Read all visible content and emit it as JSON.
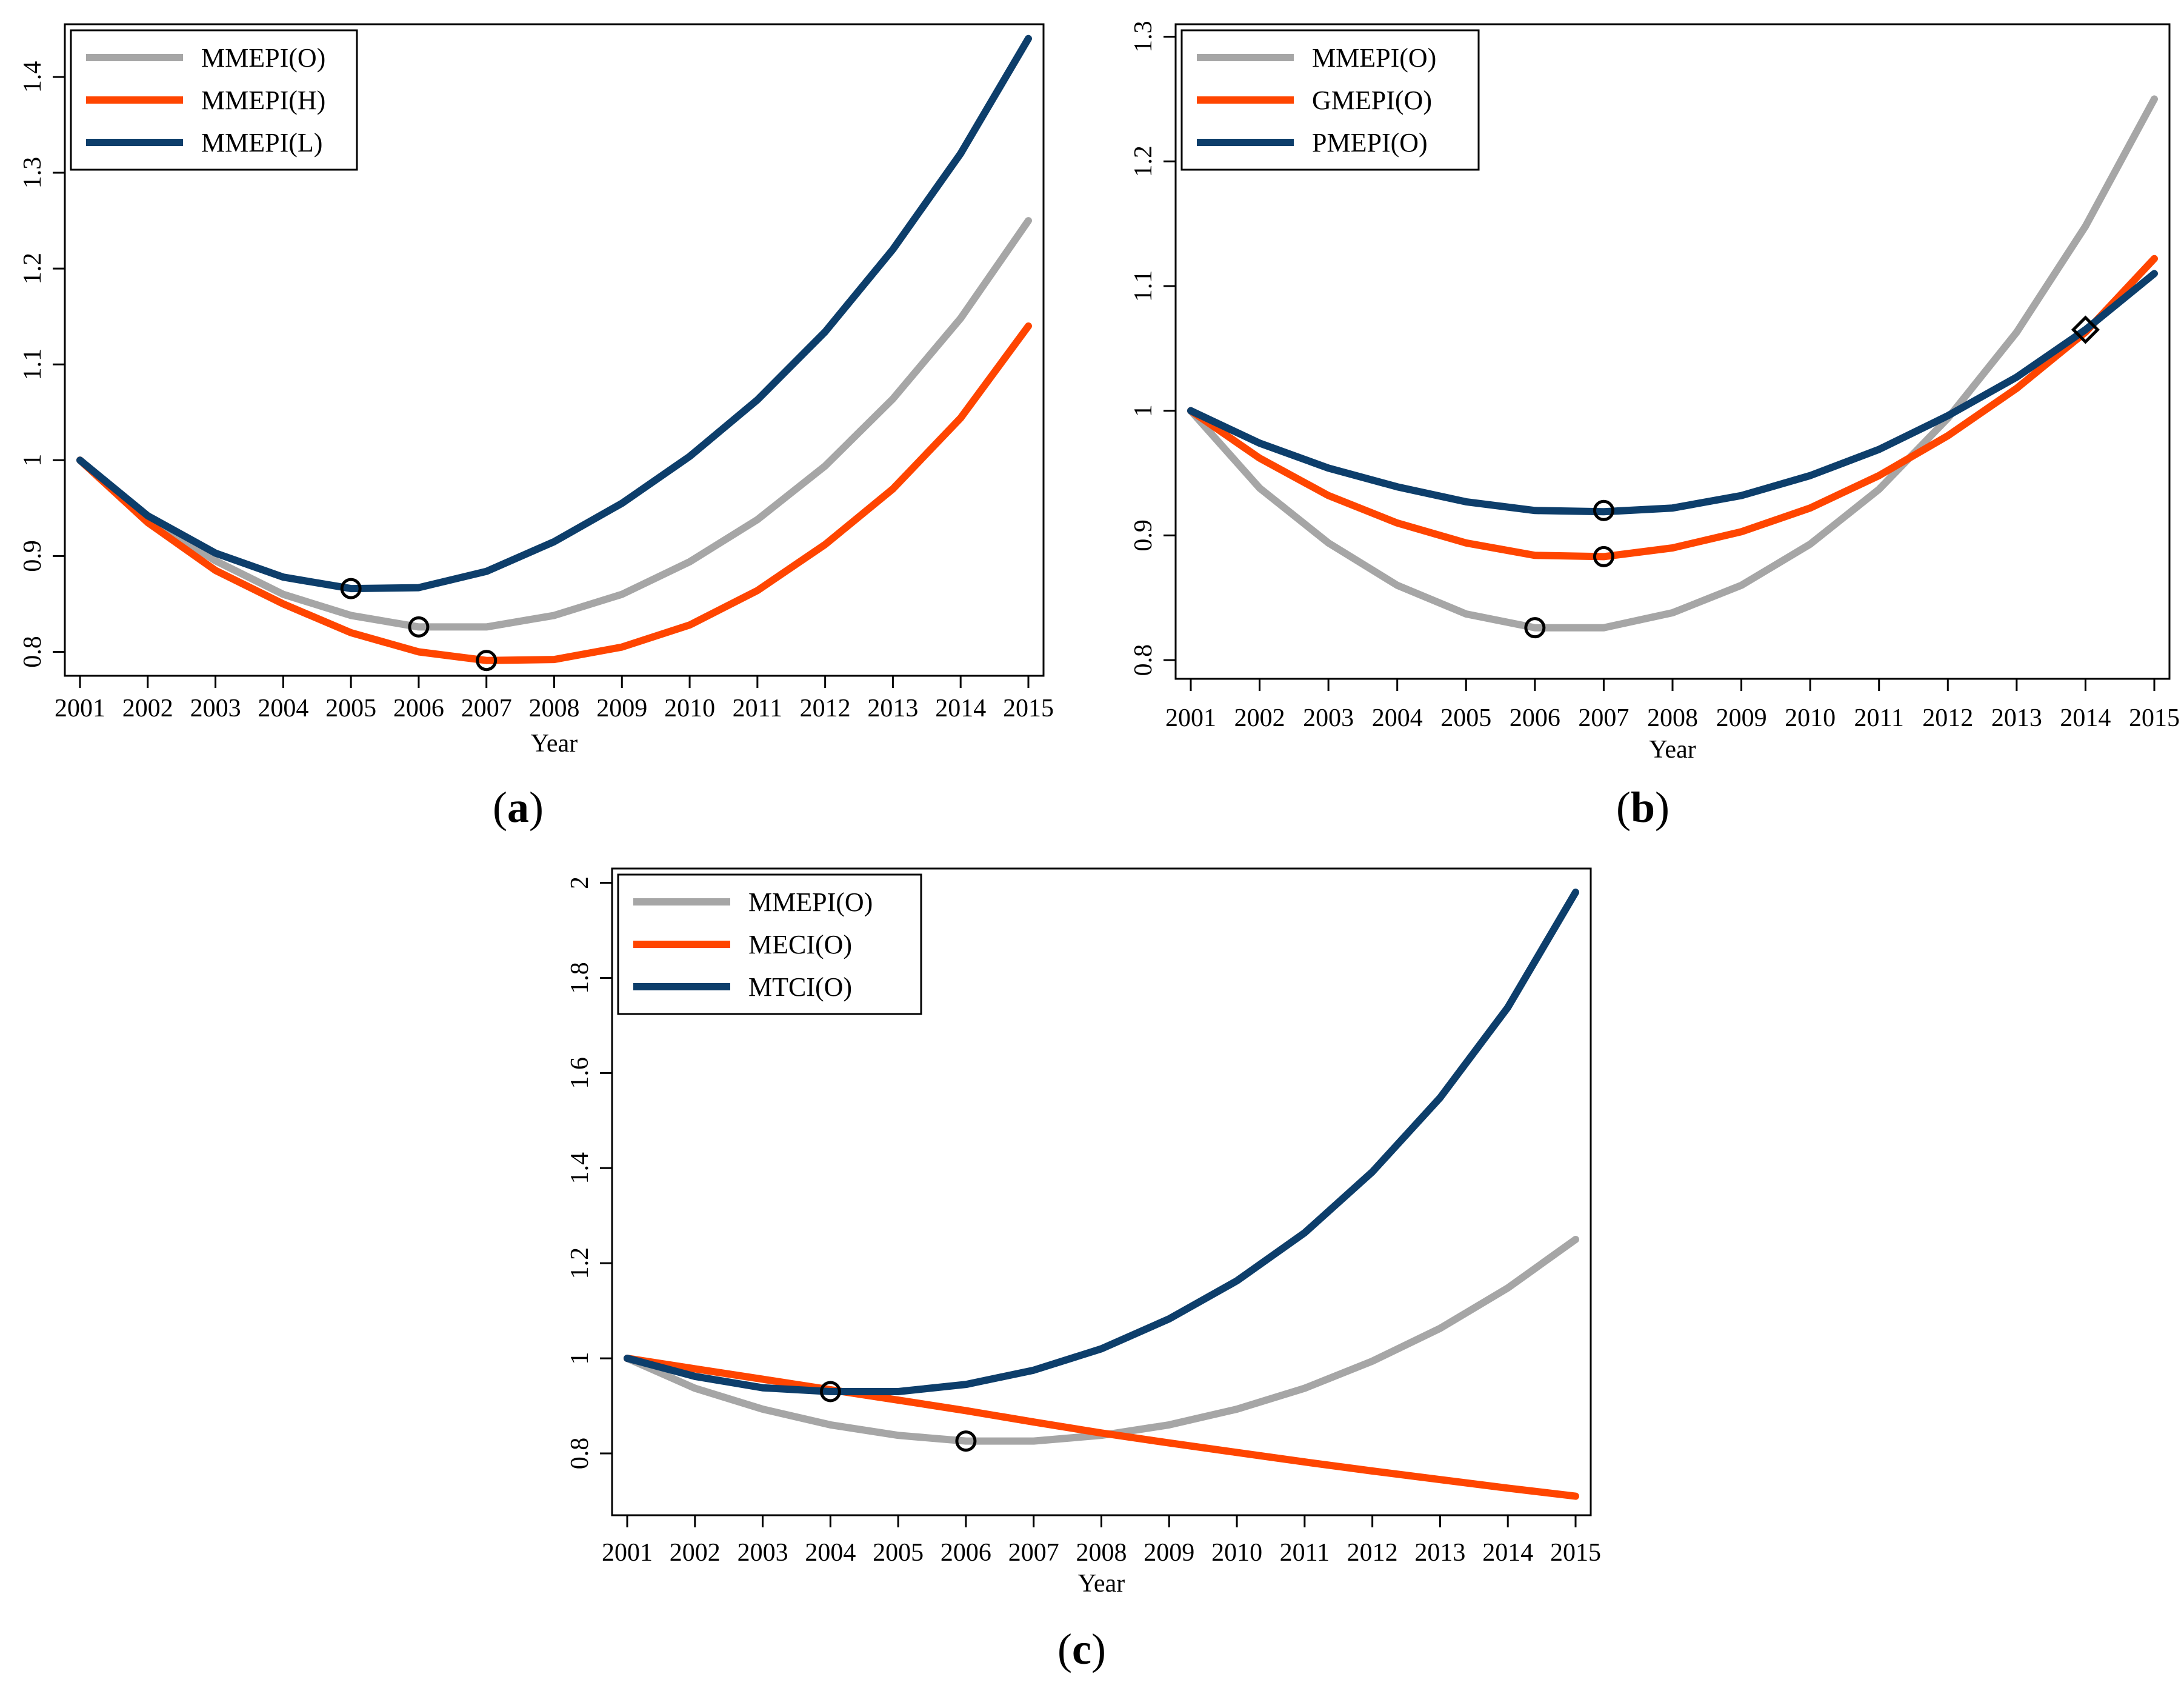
{
  "panels": [
    {
      "id": "a",
      "label_open": "(",
      "label_letter": "a",
      "label_close": ")"
    },
    {
      "id": "b",
      "label_open": "(",
      "label_letter": "b",
      "label_close": ")"
    },
    {
      "id": "c",
      "label_open": "(",
      "label_letter": "c",
      "label_close": ")"
    }
  ],
  "colors": {
    "gray": "#a6a6a6",
    "orange": "#ff4500",
    "navy": "#0d3e6b"
  },
  "chart_data": [
    {
      "panel": "a",
      "type": "line",
      "xlabel": "Year",
      "ylabel": "",
      "x": [
        2001,
        2002,
        2003,
        2004,
        2005,
        2006,
        2007,
        2008,
        2009,
        2010,
        2011,
        2012,
        2013,
        2014,
        2015
      ],
      "yticks": [
        0.8,
        0.9,
        1,
        1.1,
        1.2,
        1.3,
        1.4
      ],
      "ytick_labels": [
        "0.8",
        "0.9",
        "1",
        "1.1",
        "1.2",
        "1.3",
        "1.4"
      ],
      "ylim": [
        0.775,
        1.455
      ],
      "grid": false,
      "legend_position": "top-left",
      "series": [
        {
          "name": "MMEPI(O)",
          "color": "#a6a6a6",
          "values": [
            1.0,
            0.94,
            0.895,
            0.86,
            0.838,
            0.826,
            0.826,
            0.838,
            0.86,
            0.894,
            0.938,
            0.994,
            1.064,
            1.148,
            1.25
          ],
          "marker": {
            "x": 2006,
            "y": 0.826,
            "shape": "circle"
          }
        },
        {
          "name": "MMEPI(H)",
          "color": "#ff4500",
          "values": [
            1.0,
            0.935,
            0.885,
            0.85,
            0.82,
            0.8,
            0.791,
            0.792,
            0.805,
            0.828,
            0.864,
            0.912,
            0.97,
            1.044,
            1.14
          ],
          "marker": {
            "x": 2007,
            "y": 0.791,
            "shape": "circle"
          }
        },
        {
          "name": "MMEPI(L)",
          "color": "#0d3e6b",
          "values": [
            1.0,
            0.942,
            0.903,
            0.878,
            0.866,
            0.867,
            0.884,
            0.915,
            0.955,
            1.004,
            1.063,
            1.134,
            1.22,
            1.32,
            1.44
          ],
          "marker": {
            "x": 2005,
            "y": 0.866,
            "shape": "circle"
          }
        }
      ]
    },
    {
      "panel": "b",
      "type": "line",
      "xlabel": "Year",
      "ylabel": "",
      "x": [
        2001,
        2002,
        2003,
        2004,
        2005,
        2006,
        2007,
        2008,
        2009,
        2010,
        2011,
        2012,
        2013,
        2014,
        2015
      ],
      "yticks": [
        0.8,
        0.9,
        1,
        1.1,
        1.2,
        1.3
      ],
      "ytick_labels": [
        "0.8",
        "0.9",
        "1",
        "1.1",
        "1.2",
        "1.3"
      ],
      "ylim": [
        0.785,
        1.31
      ],
      "grid": false,
      "legend_position": "top-left",
      "series": [
        {
          "name": "MMEPI(O)",
          "color": "#a6a6a6",
          "values": [
            1.0,
            0.938,
            0.894,
            0.86,
            0.837,
            0.826,
            0.826,
            0.838,
            0.86,
            0.893,
            0.937,
            0.994,
            1.063,
            1.148,
            1.25
          ],
          "marker": {
            "x": 2006,
            "y": 0.826,
            "shape": "circle"
          }
        },
        {
          "name": "GMEPI(O)",
          "color": "#ff4500",
          "values": [
            1.0,
            0.962,
            0.932,
            0.91,
            0.894,
            0.884,
            0.883,
            0.89,
            0.903,
            0.922,
            0.948,
            0.98,
            1.018,
            1.063,
            1.122
          ],
          "marker": {
            "x": 2007,
            "y": 0.883,
            "shape": "circle"
          }
        },
        {
          "name": "PMEPI(O)",
          "color": "#0d3e6b",
          "values": [
            1.0,
            0.974,
            0.954,
            0.939,
            0.927,
            0.92,
            0.919,
            0.922,
            0.932,
            0.948,
            0.969,
            0.996,
            1.027,
            1.065,
            1.11
          ],
          "marker": {
            "x": 2007,
            "y": 0.92,
            "shape": "circle"
          }
        }
      ],
      "crossing_marker": {
        "x": 2014,
        "y": 1.065,
        "shape": "diamond"
      }
    },
    {
      "panel": "c",
      "type": "line",
      "xlabel": "Year",
      "ylabel": "",
      "x": [
        2001,
        2002,
        2003,
        2004,
        2005,
        2006,
        2007,
        2008,
        2009,
        2010,
        2011,
        2012,
        2013,
        2014,
        2015
      ],
      "yticks": [
        0.8,
        1,
        1.2,
        1.4,
        1.6,
        1.8,
        2
      ],
      "ytick_labels": [
        "0.8",
        "1",
        "1.2",
        "1.4",
        "1.6",
        "1.8",
        "2"
      ],
      "ylim": [
        0.67,
        2.03
      ],
      "grid": false,
      "legend_position": "top-left",
      "series": [
        {
          "name": "MMEPI(O)",
          "color": "#a6a6a6",
          "values": [
            1.0,
            0.937,
            0.893,
            0.86,
            0.838,
            0.826,
            0.826,
            0.838,
            0.86,
            0.893,
            0.937,
            0.994,
            1.063,
            1.148,
            1.25
          ],
          "marker": {
            "x": 2006,
            "y": 0.826,
            "shape": "circle"
          }
        },
        {
          "name": "MECI(O)",
          "color": "#ff4500",
          "values": [
            1.0,
            0.978,
            0.956,
            0.934,
            0.912,
            0.89,
            0.866,
            0.843,
            0.822,
            0.802,
            0.782,
            0.763,
            0.745,
            0.727,
            0.71
          ]
        },
        {
          "name": "MTCI(O)",
          "color": "#0d3e6b",
          "values": [
            1.0,
            0.962,
            0.938,
            0.93,
            0.93,
            0.945,
            0.975,
            1.02,
            1.083,
            1.163,
            1.264,
            1.392,
            1.548,
            1.738,
            1.98
          ],
          "marker": {
            "x": 2004,
            "y": 0.93,
            "shape": "circle"
          }
        }
      ]
    }
  ]
}
